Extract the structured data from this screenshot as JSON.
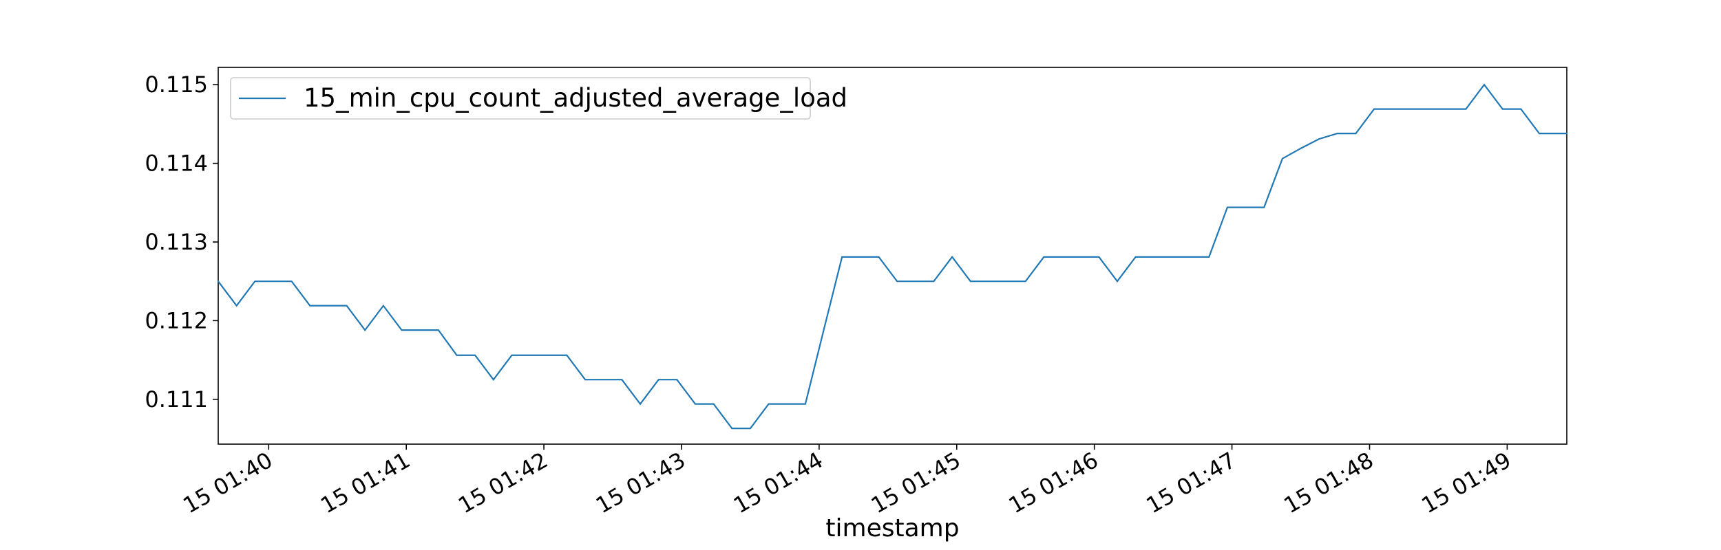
{
  "chart_data": {
    "type": "line",
    "title": "",
    "xlabel": "timestamp",
    "ylabel": "",
    "legend": {
      "position": "top-left",
      "entries": [
        "15_min_cpu_count_adjusted_average_load"
      ]
    },
    "grid": false,
    "x_tick_labels": [
      "15 01:40",
      "15 01:41",
      "15 01:42",
      "15 01:43",
      "15 01:44",
      "15 01:45",
      "15 01:46",
      "15 01:47",
      "15 01:48",
      "15 01:49"
    ],
    "y_tick_labels": [
      "0.111",
      "0.112",
      "0.113",
      "0.114",
      "0.115"
    ],
    "xlim": [
      "15 01:39:38",
      "15 01:49:26"
    ],
    "ylim": [
      0.11043,
      0.11522
    ],
    "series": [
      {
        "name": "15_min_cpu_count_adjusted_average_load",
        "color": "#1f77b4",
        "x": [
          "15 01:39:38",
          "15 01:39:46",
          "15 01:39:54",
          "15 01:40:02",
          "15 01:40:10",
          "15 01:40:18",
          "15 01:40:26",
          "15 01:40:34",
          "15 01:40:42",
          "15 01:40:50",
          "15 01:40:58",
          "15 01:41:06",
          "15 01:41:14",
          "15 01:41:22",
          "15 01:41:30",
          "15 01:41:38",
          "15 01:41:46",
          "15 01:41:54",
          "15 01:42:02",
          "15 01:42:10",
          "15 01:42:18",
          "15 01:42:26",
          "15 01:42:34",
          "15 01:42:42",
          "15 01:42:50",
          "15 01:42:58",
          "15 01:43:06",
          "15 01:43:14",
          "15 01:43:22",
          "15 01:43:30",
          "15 01:43:38",
          "15 01:43:46",
          "15 01:43:54",
          "15 01:44:02",
          "15 01:44:10",
          "15 01:44:18",
          "15 01:44:26",
          "15 01:44:34",
          "15 01:44:42",
          "15 01:44:50",
          "15 01:44:58",
          "15 01:45:06",
          "15 01:45:14",
          "15 01:45:22",
          "15 01:45:30",
          "15 01:45:38",
          "15 01:45:46",
          "15 01:45:54",
          "15 01:46:02",
          "15 01:46:10",
          "15 01:46:18",
          "15 01:46:26",
          "15 01:46:34",
          "15 01:46:42",
          "15 01:46:50",
          "15 01:46:58",
          "15 01:47:06",
          "15 01:47:14",
          "15 01:47:22",
          "15 01:47:30",
          "15 01:47:38",
          "15 01:47:46",
          "15 01:47:54",
          "15 01:48:02",
          "15 01:48:10",
          "15 01:48:18",
          "15 01:48:26",
          "15 01:48:34",
          "15 01:48:42",
          "15 01:48:50",
          "15 01:48:58",
          "15 01:49:06",
          "15 01:49:14",
          "15 01:49:22",
          "15 01:49:26"
        ],
        "y": [
          0.1125,
          0.11219,
          0.1125,
          0.1125,
          0.1125,
          0.11219,
          0.11219,
          0.11219,
          0.11188,
          0.11219,
          0.11188,
          0.11188,
          0.11188,
          0.11156,
          0.11156,
          0.11125,
          0.11156,
          0.11156,
          0.11156,
          0.11156,
          0.11125,
          0.11125,
          0.11125,
          0.11094,
          0.11125,
          0.11125,
          0.11094,
          0.11094,
          0.11063,
          0.11063,
          0.11094,
          0.11094,
          0.11094,
          0.11188,
          0.11281,
          0.11281,
          0.11281,
          0.1125,
          0.1125,
          0.1125,
          0.11281,
          0.1125,
          0.1125,
          0.1125,
          0.1125,
          0.11281,
          0.11281,
          0.11281,
          0.11281,
          0.1125,
          0.11281,
          0.11281,
          0.11281,
          0.11281,
          0.11281,
          0.11344,
          0.11344,
          0.11344,
          0.11406,
          0.11419,
          0.11431,
          0.11438,
          0.11438,
          0.11469,
          0.11469,
          0.11469,
          0.11469,
          0.11469,
          0.11469,
          0.115,
          0.11469,
          0.11469,
          0.11438,
          0.11438,
          0.11438
        ]
      }
    ]
  }
}
